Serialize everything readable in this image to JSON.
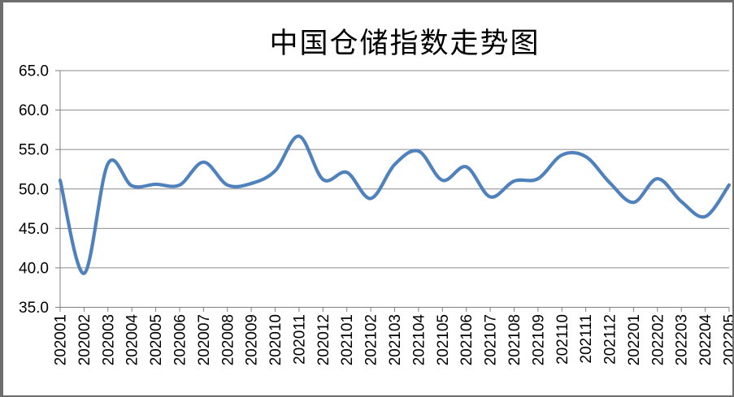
{
  "chart_data": {
    "type": "line",
    "title": "中国仓储指数走势图",
    "categories": [
      "202001",
      "202002",
      "202003",
      "202004",
      "202005",
      "202006",
      "202007",
      "202008",
      "202009",
      "202010",
      "202011",
      "202012",
      "202101",
      "202102",
      "202103",
      "202104",
      "202105",
      "202106",
      "202107",
      "202108",
      "202109",
      "202110",
      "202111",
      "202112",
      "202201",
      "202202",
      "202203",
      "202204",
      "202205"
    ],
    "values": [
      51.1,
      39.3,
      53.2,
      50.4,
      50.6,
      50.5,
      53.4,
      50.5,
      50.7,
      52.3,
      56.7,
      51.2,
      52.1,
      48.8,
      53.1,
      54.8,
      51.1,
      52.8,
      49.0,
      51.0,
      51.3,
      54.3,
      54.1,
      50.8,
      48.3,
      51.3,
      48.4,
      46.5,
      50.5
    ],
    "ylim": [
      35.0,
      65.0
    ],
    "ytick_interval": 5.0,
    "ytick_labels": [
      "65.0",
      "60.0",
      "55.0",
      "50.0",
      "45.0",
      "40.0",
      "35.0"
    ],
    "xlabel": "",
    "ylabel": "",
    "grid": true,
    "legend": false,
    "smooth": true,
    "line_color": "#4f81bd",
    "gridline_color": "#8c8c8c",
    "axis_color": "#7f7f7f",
    "border_color": "#6e6e6e"
  }
}
